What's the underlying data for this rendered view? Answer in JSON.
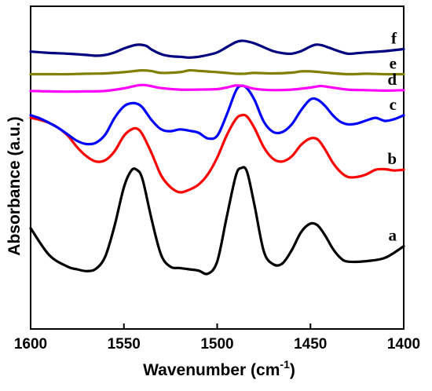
{
  "chart_data": {
    "type": "line",
    "xlabel": "Wavenumber (cm",
    "xlabel_sup": "-1",
    "xlabel_end": ")",
    "ylabel": "Absorbance (a.u.)",
    "xlim": [
      1600,
      1400
    ],
    "x_reversed": true,
    "ylim": [
      0,
      100
    ],
    "y_ticks_shown": false,
    "x_ticks": [
      1600,
      1550,
      1500,
      1450,
      1400
    ],
    "grid": false,
    "legend": "inline labels at right end of each series",
    "series": [
      {
        "name": "a",
        "color": "#000000",
        "x": [
          1600,
          1590,
          1580,
          1575,
          1570,
          1565,
          1560,
          1555,
          1550,
          1546,
          1543,
          1540,
          1535,
          1530,
          1525,
          1520,
          1515,
          1510,
          1505,
          1500,
          1495,
          1490,
          1487,
          1484,
          1480,
          1475,
          1470,
          1465,
          1460,
          1455,
          1450,
          1446,
          1442,
          1438,
          1434,
          1430,
          1420,
          1410,
          1400
        ],
        "values": [
          27.0,
          16.5,
          12.0,
          11.0,
          10.3,
          11.2,
          16.0,
          28.0,
          43.0,
          49.5,
          49.7,
          46.0,
          30.0,
          16.5,
          12.0,
          11.5,
          11.0,
          10.5,
          9.3,
          14.0,
          31.0,
          47.5,
          50.5,
          49.0,
          36.0,
          18.0,
          13.0,
          13.3,
          18.5,
          25.5,
          28.8,
          28.0,
          24.0,
          19.0,
          15.5,
          14.0,
          14.2,
          15.5,
          20.0
        ]
      },
      {
        "name": "b",
        "color": "#ff0000",
        "x": [
          1600,
          1595,
          1590,
          1585,
          1580,
          1575,
          1570,
          1565,
          1560,
          1555,
          1550,
          1546,
          1543,
          1540,
          1535,
          1530,
          1525,
          1520,
          1515,
          1510,
          1505,
          1500,
          1495,
          1490,
          1487,
          1484,
          1480,
          1475,
          1470,
          1465,
          1460,
          1455,
          1450,
          1446,
          1442,
          1438,
          1434,
          1430,
          1425,
          1420,
          1415,
          1410,
          1405,
          1400
        ],
        "values": [
          70.0,
          69.2,
          68.0,
          66.0,
          63.0,
          58.5,
          55.0,
          53.0,
          53.5,
          57.0,
          63.0,
          65.5,
          65.8,
          63.5,
          56.0,
          47.5,
          43.0,
          41.0,
          42.0,
          44.0,
          48.0,
          54.5,
          63.0,
          69.5,
          71.0,
          70.5,
          66.0,
          58.5,
          54.0,
          53.0,
          55.0,
          59.5,
          62.0,
          61.5,
          57.5,
          52.5,
          49.0,
          47.0,
          47.0,
          48.0,
          49.8,
          50.0,
          49.5,
          49.8
        ]
      },
      {
        "name": "c",
        "color": "#0000ff",
        "x": [
          1600,
          1595,
          1590,
          1585,
          1580,
          1575,
          1570,
          1565,
          1560,
          1555,
          1550,
          1546,
          1543,
          1540,
          1535,
          1530,
          1525,
          1520,
          1515,
          1510,
          1505,
          1500,
          1495,
          1490,
          1487,
          1484,
          1480,
          1475,
          1470,
          1465,
          1460,
          1455,
          1450,
          1446,
          1442,
          1438,
          1434,
          1430,
          1425,
          1420,
          1415,
          1410,
          1405,
          1400
        ],
        "values": [
          71.0,
          69.8,
          68.0,
          66.0,
          63.5,
          61.0,
          59.8,
          60.3,
          63.5,
          70.0,
          74.5,
          75.7,
          75.5,
          74.0,
          69.0,
          65.5,
          64.8,
          65.5,
          65.0,
          64.2,
          62.0,
          63.0,
          71.0,
          80.5,
          82.5,
          81.5,
          77.0,
          68.5,
          64.5,
          64.5,
          67.5,
          73.0,
          77.2,
          77.0,
          74.5,
          71.0,
          68.5,
          67.5,
          67.8,
          69.0,
          70.0,
          68.8,
          69.5,
          71.0
        ]
      },
      {
        "name": "d",
        "color": "#ff00ff",
        "x": [
          1600,
          1590,
          1580,
          1570,
          1560,
          1550,
          1545,
          1540,
          1535,
          1530,
          1520,
          1510,
          1500,
          1495,
          1490,
          1485,
          1480,
          1470,
          1460,
          1450,
          1445,
          1440,
          1430,
          1420,
          1410,
          1400
        ],
        "values": [
          80.5,
          80.3,
          80.2,
          80.3,
          80.5,
          81.5,
          82.3,
          82.8,
          82.3,
          81.6,
          81.0,
          81.0,
          81.2,
          81.8,
          82.6,
          82.3,
          81.3,
          80.8,
          81.0,
          81.8,
          82.4,
          82.0,
          81.0,
          80.8,
          80.6,
          80.8
        ]
      },
      {
        "name": "e",
        "color": "#808000",
        "x": [
          1600,
          1590,
          1580,
          1570,
          1560,
          1550,
          1545,
          1540,
          1535,
          1530,
          1520,
          1515,
          1510,
          1500,
          1495,
          1490,
          1485,
          1480,
          1470,
          1460,
          1455,
          1450,
          1440,
          1430,
          1420,
          1410,
          1400
        ],
        "values": [
          87.0,
          87.0,
          87.0,
          87.2,
          87.3,
          87.8,
          88.2,
          88.5,
          88.2,
          87.5,
          87.8,
          88.5,
          88.3,
          87.8,
          87.5,
          87.2,
          87.2,
          87.5,
          87.3,
          87.6,
          88.1,
          88.1,
          87.5,
          87.0,
          87.2,
          87.0,
          87.0
        ]
      },
      {
        "name": "f",
        "color": "#000080",
        "x": [
          1600,
          1590,
          1580,
          1570,
          1565,
          1560,
          1555,
          1550,
          1545,
          1542,
          1538,
          1535,
          1530,
          1525,
          1520,
          1515,
          1510,
          1505,
          1500,
          1495,
          1490,
          1487,
          1484,
          1480,
          1475,
          1470,
          1465,
          1460,
          1455,
          1450,
          1447,
          1444,
          1440,
          1435,
          1430,
          1425,
          1420,
          1410,
          1400
        ],
        "values": [
          95.8,
          95.3,
          95.0,
          94.5,
          94.2,
          94.5,
          95.5,
          97.0,
          98.2,
          98.5,
          98.0,
          96.5,
          94.8,
          94.0,
          93.8,
          93.5,
          93.8,
          94.5,
          95.5,
          97.5,
          99.5,
          100.0,
          99.8,
          99.0,
          97.5,
          96.0,
          95.2,
          95.0,
          96.0,
          97.8,
          98.5,
          98.3,
          97.3,
          96.0,
          95.0,
          95.2,
          95.5,
          96.0,
          96.8
        ]
      }
    ]
  }
}
